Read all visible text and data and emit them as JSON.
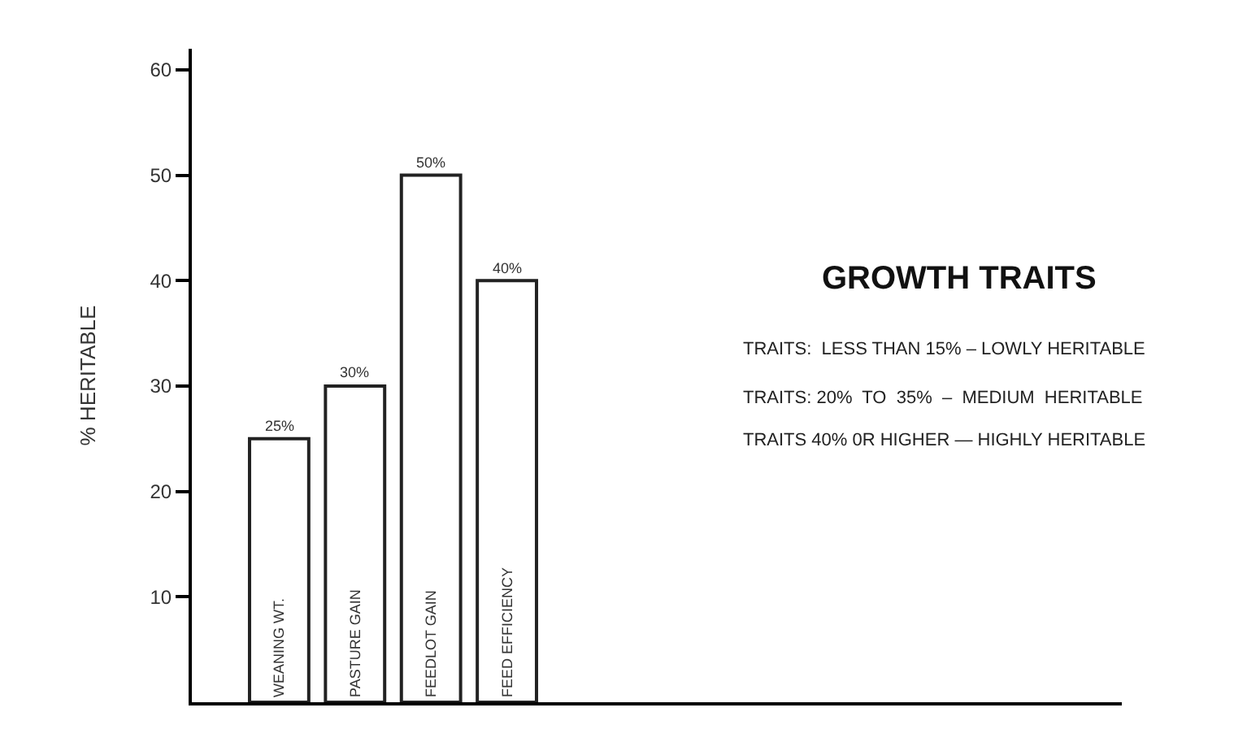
{
  "chart_data": {
    "type": "bar",
    "title": "GROWTH TRAITS",
    "ylabel": "% HERITABLE",
    "categories": [
      "WEANING WT.",
      "PASTURE GAIN",
      "FEEDLOT GAIN",
      "FEED EFFICIENCY"
    ],
    "values": [
      25,
      30,
      50,
      40
    ],
    "color": "#ffffff",
    "value_labels": [
      "25%",
      "30%",
      "50%",
      "40%"
    ],
    "ylim": [
      0,
      62
    ],
    "yticks": [
      10,
      20,
      30,
      40,
      50,
      60
    ],
    "annotations": [
      "TRAITS:  LESS THAN 15% – LOWLY HERITABLE",
      "TRAITS: 20%  TO  35%  –  MEDIUM  HERITABLE",
      "TRAITS 40% 0R HIGHER — HIGHLY HERITABLE"
    ]
  }
}
